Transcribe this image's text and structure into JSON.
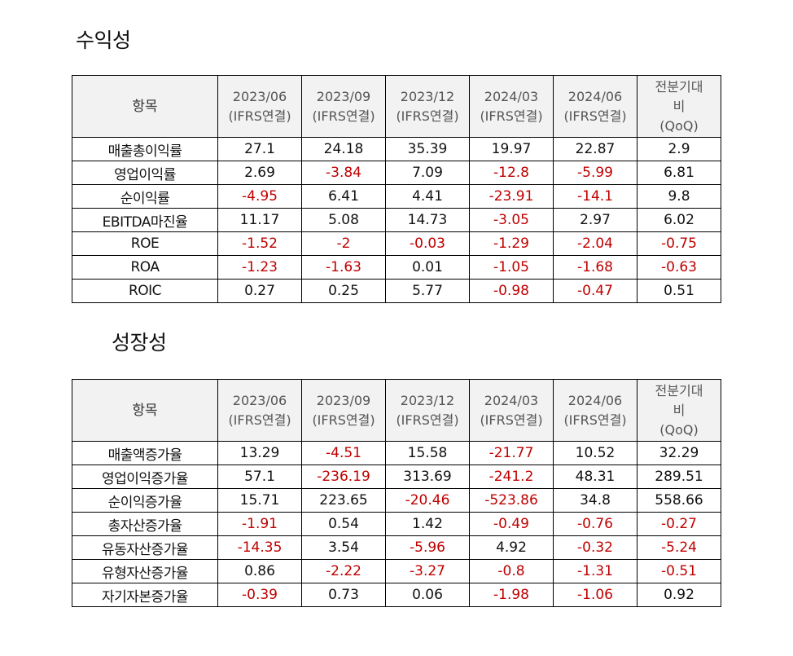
{
  "profitability": {
    "title": "수익성",
    "headers": {
      "item": "항목",
      "periods": [
        {
          "line1": "2023/06",
          "line2": "(IFRS연결)"
        },
        {
          "line1": "2023/09",
          "line2": "(IFRS연결)"
        },
        {
          "line1": "2023/12",
          "line2": "(IFRS연결)"
        },
        {
          "line1": "2024/03",
          "line2": "(IFRS연결)"
        },
        {
          "line1": "2024/06",
          "line2": "(IFRS연결)"
        }
      ],
      "qoq": {
        "line1": "전분기대",
        "line2": "비",
        "line3": "(QoQ)"
      }
    },
    "rows": [
      {
        "label": "매출총이익률",
        "values": [
          "27.1",
          "24.18",
          "35.39",
          "19.97",
          "22.87",
          "2.9"
        ]
      },
      {
        "label": "영업이익률",
        "values": [
          "2.69",
          "-3.84",
          "7.09",
          "-12.8",
          "-5.99",
          "6.81"
        ]
      },
      {
        "label": "순이익률",
        "values": [
          "-4.95",
          "6.41",
          "4.41",
          "-23.91",
          "-14.1",
          "9.8"
        ]
      },
      {
        "label": "EBITDA마진율",
        "values": [
          "11.17",
          "5.08",
          "14.73",
          "-3.05",
          "2.97",
          "6.02"
        ]
      },
      {
        "label": "ROE",
        "values": [
          "-1.52",
          "-2",
          "-0.03",
          "-1.29",
          "-2.04",
          "-0.75"
        ]
      },
      {
        "label": "ROA",
        "values": [
          "-1.23",
          "-1.63",
          "0.01",
          "-1.05",
          "-1.68",
          "-0.63"
        ]
      },
      {
        "label": "ROIC",
        "values": [
          "0.27",
          "0.25",
          "5.77",
          "-0.98",
          "-0.47",
          "0.51"
        ]
      }
    ]
  },
  "growth": {
    "title": "성장성",
    "headers": {
      "item": "항목",
      "periods": [
        {
          "line1": "2023/06",
          "line2": "(IFRS연결)"
        },
        {
          "line1": "2023/09",
          "line2": "(IFRS연결)"
        },
        {
          "line1": "2023/12",
          "line2": "(IFRS연결)"
        },
        {
          "line1": "2024/03",
          "line2": "(IFRS연결)"
        },
        {
          "line1": "2024/06",
          "line2": "(IFRS연결)"
        }
      ],
      "qoq": {
        "line1": "전분기대",
        "line2": "비",
        "line3": "(QoQ)"
      }
    },
    "rows": [
      {
        "label": "매출액증가율",
        "values": [
          "13.29",
          "-4.51",
          "15.58",
          "-21.77",
          "10.52",
          "32.29"
        ]
      },
      {
        "label": "영업이익증가율",
        "values": [
          "57.1",
          "-236.19",
          "313.69",
          "-241.2",
          "48.31",
          "289.51"
        ]
      },
      {
        "label": "순이익증가율",
        "values": [
          "15.71",
          "223.65",
          "-20.46",
          "-523.86",
          "34.8",
          "558.66"
        ]
      },
      {
        "label": "총자산증가율",
        "values": [
          "-1.91",
          "0.54",
          "1.42",
          "-0.49",
          "-0.76",
          "-0.27"
        ]
      },
      {
        "label": "유동자산증가율",
        "values": [
          "-14.35",
          "3.54",
          "-5.96",
          "4.92",
          "-0.32",
          "-5.24"
        ]
      },
      {
        "label": "유형자산증가율",
        "values": [
          "0.86",
          "-2.22",
          "-3.27",
          "-0.8",
          "-1.31",
          "-0.51"
        ]
      },
      {
        "label": "자기자본증가율",
        "values": [
          "-0.39",
          "0.73",
          "0.06",
          "-1.98",
          "-1.06",
          "0.92"
        ]
      }
    ]
  },
  "colors": {
    "negative": "#c00000",
    "header_bg": "#f2f2f2",
    "border": "#000000"
  }
}
